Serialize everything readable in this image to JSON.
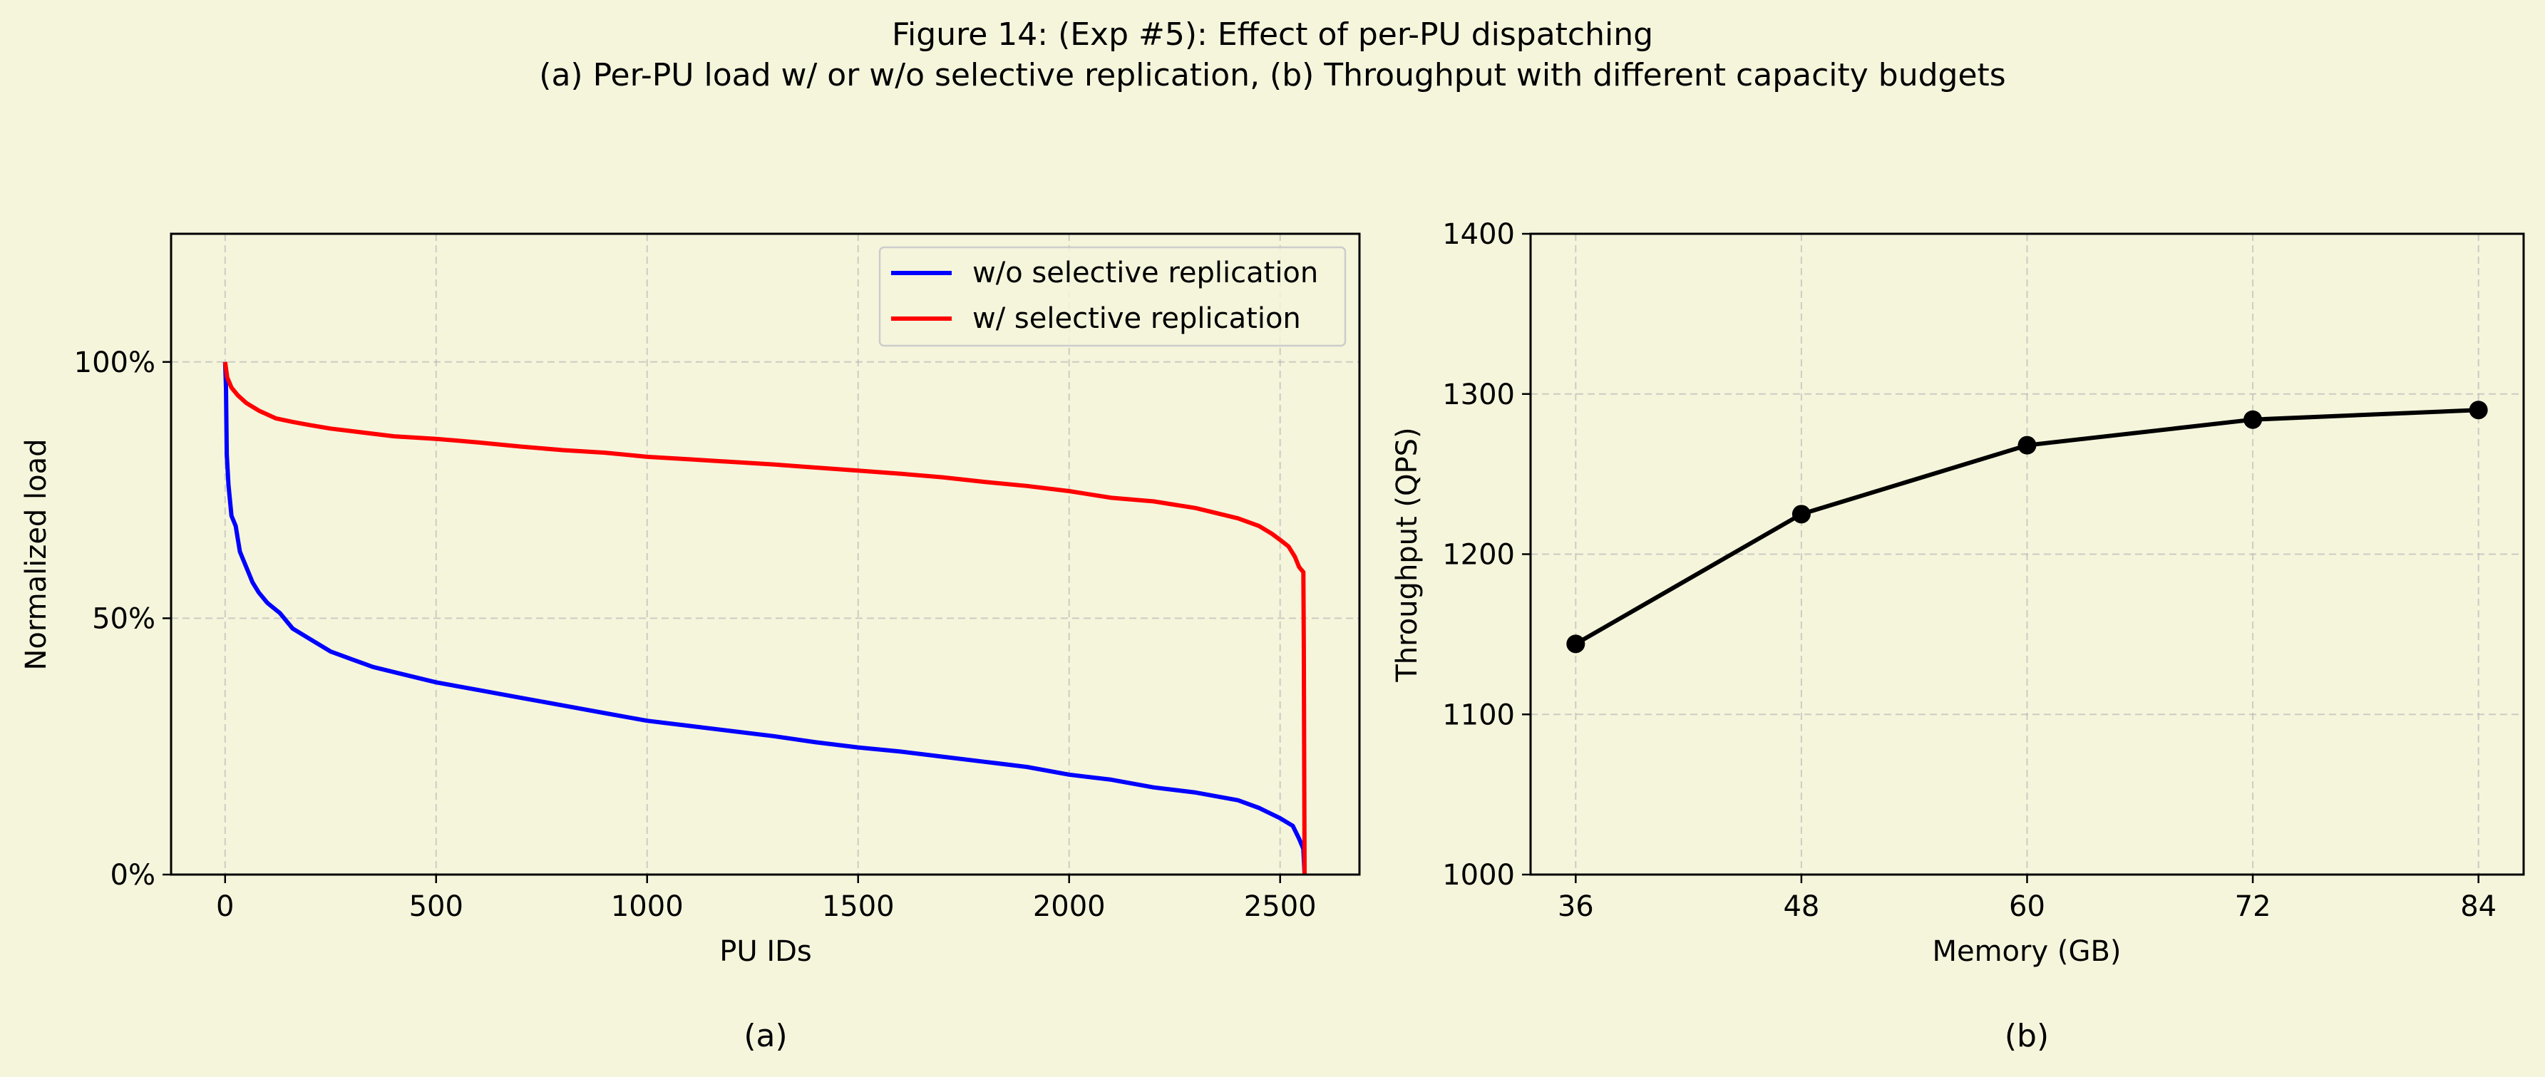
{
  "figure": {
    "title_line1": "Figure 14: (Exp #5): Effect of per-PU dispatching",
    "title_line2": "(a) Per-PU load w/ or w/o selective replication, (b) Throughput with different capacity budgets",
    "background": "#f5f5dc"
  },
  "chart_data": [
    {
      "type": "line",
      "panel_label": "(a)",
      "xlabel": "PU IDs",
      "ylabel": "Normalized load",
      "xlim": [
        -128,
        2688
      ],
      "ylim": [
        0,
        125
      ],
      "xticks": [
        0,
        500,
        1000,
        1500,
        2000,
        2500
      ],
      "xtick_labels": [
        "0",
        "500",
        "1000",
        "1500",
        "2000",
        "2500"
      ],
      "yticks": [
        0,
        50,
        100
      ],
      "ytick_labels": [
        "0%",
        "50%",
        "100%"
      ],
      "grid": true,
      "legend_position": "top-right",
      "series": [
        {
          "name": "w/o selective replication",
          "color": "#0000ff",
          "points": [
            [
              0,
              100
            ],
            [
              2,
              95
            ],
            [
              4,
              82
            ],
            [
              8,
              76
            ],
            [
              15,
              70
            ],
            [
              25,
              68
            ],
            [
              35,
              63
            ],
            [
              50,
              60
            ],
            [
              65,
              57
            ],
            [
              80,
              55
            ],
            [
              100,
              53
            ],
            [
              130,
              51
            ],
            [
              160,
              48
            ],
            [
              200,
              46
            ],
            [
              250,
              43.5
            ],
            [
              300,
              42
            ],
            [
              350,
              40.5
            ],
            [
              400,
              39.5
            ],
            [
              500,
              37.5
            ],
            [
              600,
              36
            ],
            [
              700,
              34.5
            ],
            [
              800,
              33
            ],
            [
              900,
              31.5
            ],
            [
              1000,
              30
            ],
            [
              1100,
              29
            ],
            [
              1200,
              28
            ],
            [
              1300,
              27
            ],
            [
              1400,
              25.8
            ],
            [
              1500,
              24.8
            ],
            [
              1600,
              24
            ],
            [
              1700,
              23
            ],
            [
              1800,
              22
            ],
            [
              1900,
              21
            ],
            [
              2000,
              19.5
            ],
            [
              2100,
              18.5
            ],
            [
              2200,
              17
            ],
            [
              2300,
              16
            ],
            [
              2400,
              14.5
            ],
            [
              2450,
              13
            ],
            [
              2500,
              11
            ],
            [
              2530,
              9.5
            ],
            [
              2545,
              7
            ],
            [
              2555,
              5
            ],
            [
              2558,
              0
            ]
          ]
        },
        {
          "name": "w/ selective replication",
          "color": "#ff0000",
          "points": [
            [
              0,
              100
            ],
            [
              5,
              97
            ],
            [
              15,
              95
            ],
            [
              30,
              93.5
            ],
            [
              50,
              92
            ],
            [
              80,
              90.5
            ],
            [
              120,
              89
            ],
            [
              160,
              88.3
            ],
            [
              200,
              87.7
            ],
            [
              250,
              87
            ],
            [
              300,
              86.5
            ],
            [
              400,
              85.5
            ],
            [
              500,
              85
            ],
            [
              600,
              84.3
            ],
            [
              700,
              83.5
            ],
            [
              800,
              82.8
            ],
            [
              900,
              82.3
            ],
            [
              1000,
              81.5
            ],
            [
              1100,
              81
            ],
            [
              1200,
              80.5
            ],
            [
              1300,
              80
            ],
            [
              1400,
              79.4
            ],
            [
              1500,
              78.8
            ],
            [
              1600,
              78.2
            ],
            [
              1700,
              77.5
            ],
            [
              1800,
              76.6
            ],
            [
              1900,
              75.8
            ],
            [
              2000,
              74.8
            ],
            [
              2100,
              73.5
            ],
            [
              2200,
              72.8
            ],
            [
              2300,
              71.5
            ],
            [
              2400,
              69.5
            ],
            [
              2450,
              68
            ],
            [
              2480,
              66.5
            ],
            [
              2500,
              65.3
            ],
            [
              2520,
              64
            ],
            [
              2535,
              62
            ],
            [
              2545,
              60
            ],
            [
              2555,
              59
            ],
            [
              2556,
              45
            ],
            [
              2558,
              0
            ]
          ]
        }
      ]
    },
    {
      "type": "line",
      "panel_label": "(b)",
      "xlabel": "Memory (GB)",
      "ylabel": "Throughput (QPS)",
      "x": [
        36,
        48,
        60,
        72,
        84
      ],
      "xlim": [
        33.6,
        86.4
      ],
      "ylim": [
        1000,
        1400
      ],
      "xtick_labels": [
        "36",
        "48",
        "60",
        "72",
        "84"
      ],
      "yticks": [
        1000,
        1100,
        1200,
        1300,
        1400
      ],
      "ytick_labels": [
        "1000",
        "1100",
        "1200",
        "1300",
        "1400"
      ],
      "grid": true,
      "series": [
        {
          "color": "#000000",
          "markers": true,
          "values": [
            1144,
            1225,
            1268,
            1284,
            1290
          ]
        }
      ]
    }
  ]
}
